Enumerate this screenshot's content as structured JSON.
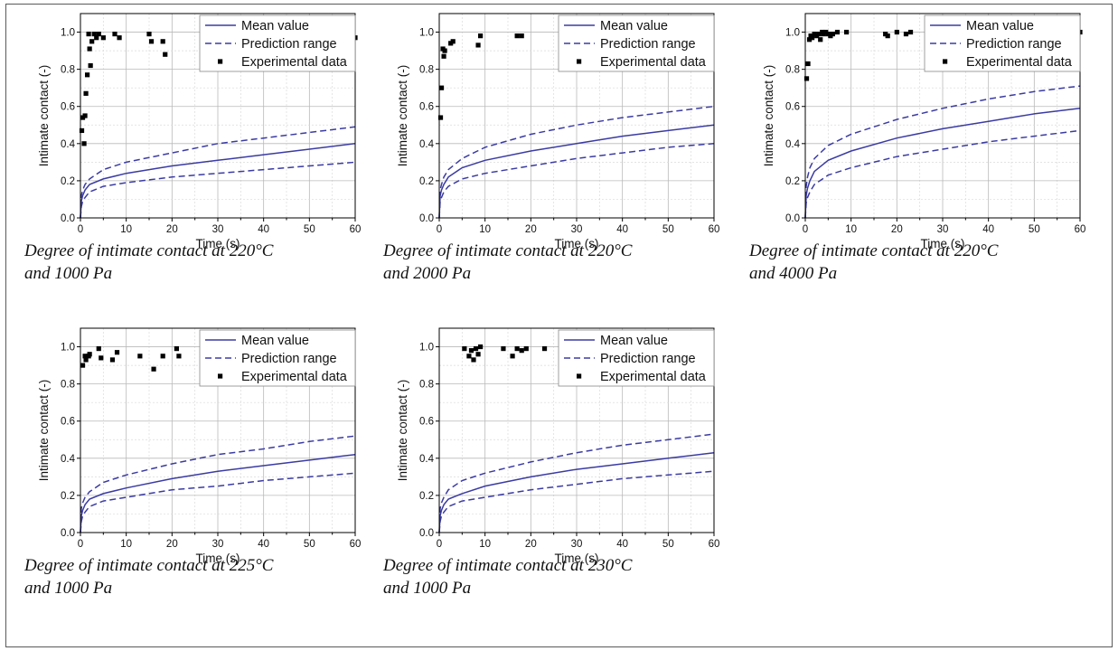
{
  "colors": {
    "model": "#3b3ba3",
    "experimental": "#000000",
    "grid": "#b9b9b9"
  },
  "legend": {
    "mean": "Mean value",
    "range": "Prediction range",
    "exp": "Experimental data"
  },
  "chart_data": [
    {
      "type": "line",
      "title": "",
      "xlabel": "Time (s)",
      "ylabel": "Intimate contact (-)",
      "xlim": [
        0,
        60
      ],
      "ylim": [
        0,
        1.1
      ],
      "xticks": [
        "0",
        "10",
        "20",
        "30",
        "40",
        "50",
        "60"
      ],
      "yticks": [
        "0.0",
        "0.2",
        "0.4",
        "0.6",
        "0.8",
        "1.0"
      ],
      "grid": true,
      "legend_position": "top-right",
      "caption": [
        "Degree of intimate contact at 220°C",
        "and 1000 Pa"
      ],
      "series": [
        {
          "name": "Mean value",
          "style": "solid",
          "x": [
            0.2,
            0.5,
            1,
            2,
            5,
            10,
            20,
            30,
            40,
            50,
            60
          ],
          "y": [
            0.09,
            0.12,
            0.15,
            0.18,
            0.21,
            0.24,
            0.28,
            0.31,
            0.34,
            0.37,
            0.4
          ]
        },
        {
          "name": "Prediction range",
          "style": "dashed",
          "x": [
            0.2,
            0.5,
            1,
            2,
            5,
            10,
            20,
            30,
            40,
            50,
            60
          ],
          "y": [
            0.12,
            0.15,
            0.18,
            0.21,
            0.26,
            0.3,
            0.35,
            0.4,
            0.43,
            0.46,
            0.49
          ]
        },
        {
          "name": "",
          "style": "dashed",
          "x": [
            0.2,
            0.5,
            1,
            2,
            5,
            10,
            20,
            30,
            40,
            50,
            60
          ],
          "y": [
            0.06,
            0.09,
            0.11,
            0.14,
            0.17,
            0.19,
            0.22,
            0.24,
            0.26,
            0.28,
            0.3
          ]
        },
        {
          "name": "Experimental data",
          "style": "points",
          "x": [
            0.3,
            0.5,
            0.8,
            1,
            1.2,
            1.5,
            1.8,
            2,
            2.2,
            2.5,
            3,
            3.5,
            4,
            5,
            7.5,
            8.5,
            15,
            15.5,
            18,
            18.5,
            60
          ],
          "y": [
            0.47,
            0.54,
            0.4,
            0.55,
            0.67,
            0.77,
            0.99,
            0.91,
            0.82,
            0.95,
            0.99,
            0.97,
            0.99,
            0.97,
            0.99,
            0.97,
            0.99,
            0.95,
            0.95,
            0.88,
            0.97
          ]
        }
      ]
    },
    {
      "type": "line",
      "title": "",
      "xlabel": "Time (s)",
      "ylabel": "Intimate contact (-)",
      "xlim": [
        0,
        60
      ],
      "ylim": [
        0,
        1.1
      ],
      "xticks": [
        "0",
        "10",
        "20",
        "30",
        "40",
        "50",
        "60"
      ],
      "yticks": [
        "0.0",
        "0.2",
        "0.4",
        "0.6",
        "0.8",
        "1.0"
      ],
      "grid": true,
      "legend_position": "top-right",
      "caption": [
        "Degree of intimate contact at 220°C",
        "and 2000 Pa"
      ],
      "series": [
        {
          "name": "Mean value",
          "style": "solid",
          "x": [
            0.2,
            0.5,
            1,
            2,
            5,
            10,
            20,
            30,
            40,
            50,
            60
          ],
          "y": [
            0.12,
            0.15,
            0.18,
            0.22,
            0.27,
            0.31,
            0.36,
            0.4,
            0.44,
            0.47,
            0.5
          ]
        },
        {
          "name": "Prediction range",
          "style": "dashed",
          "x": [
            0.2,
            0.5,
            1,
            2,
            5,
            10,
            20,
            30,
            40,
            50,
            60
          ],
          "y": [
            0.15,
            0.18,
            0.22,
            0.26,
            0.32,
            0.38,
            0.45,
            0.5,
            0.54,
            0.57,
            0.6
          ]
        },
        {
          "name": "",
          "style": "dashed",
          "x": [
            0.2,
            0.5,
            1,
            2,
            5,
            10,
            20,
            30,
            40,
            50,
            60
          ],
          "y": [
            0.09,
            0.11,
            0.14,
            0.17,
            0.21,
            0.24,
            0.28,
            0.32,
            0.35,
            0.38,
            0.4
          ]
        },
        {
          "name": "Experimental data",
          "style": "points",
          "x": [
            0.3,
            0.5,
            0.8,
            1,
            1.2,
            2.5,
            3,
            8.5,
            9,
            17,
            18
          ],
          "y": [
            0.54,
            0.7,
            0.91,
            0.87,
            0.9,
            0.94,
            0.95,
            0.93,
            0.98,
            0.98,
            0.98
          ]
        }
      ]
    },
    {
      "type": "line",
      "title": "",
      "xlabel": "Time (s)",
      "ylabel": "Intimate contact (-)",
      "xlim": [
        0,
        60
      ],
      "ylim": [
        0,
        1.1
      ],
      "xticks": [
        "0",
        "10",
        "20",
        "30",
        "40",
        "50",
        "60"
      ],
      "yticks": [
        "0.0",
        "0.2",
        "0.4",
        "0.6",
        "0.8",
        "1.0"
      ],
      "grid": true,
      "legend_position": "top-right",
      "caption": [
        "Degree of intimate contact at 220°C",
        "and 4000 Pa"
      ],
      "series": [
        {
          "name": "Mean value",
          "style": "solid",
          "x": [
            0.2,
            0.5,
            1,
            2,
            5,
            10,
            20,
            30,
            40,
            50,
            60
          ],
          "y": [
            0.12,
            0.16,
            0.2,
            0.25,
            0.31,
            0.36,
            0.43,
            0.48,
            0.52,
            0.56,
            0.59
          ]
        },
        {
          "name": "Prediction range",
          "style": "dashed",
          "x": [
            0.2,
            0.5,
            1,
            2,
            5,
            10,
            20,
            30,
            40,
            50,
            60
          ],
          "y": [
            0.17,
            0.22,
            0.27,
            0.32,
            0.39,
            0.45,
            0.53,
            0.59,
            0.64,
            0.68,
            0.71
          ]
        },
        {
          "name": "",
          "style": "dashed",
          "x": [
            0.2,
            0.5,
            1,
            2,
            5,
            10,
            20,
            30,
            40,
            50,
            60
          ],
          "y": [
            0.08,
            0.11,
            0.14,
            0.18,
            0.23,
            0.27,
            0.33,
            0.37,
            0.41,
            0.44,
            0.47
          ]
        },
        {
          "name": "Experimental data",
          "style": "points",
          "x": [
            0.3,
            0.6,
            0.9,
            1.2,
            1.5,
            2,
            2.5,
            3,
            3.3,
            3.7,
            4,
            4.5,
            5,
            5.5,
            6,
            7,
            9,
            17.5,
            18,
            20,
            22,
            23,
            60
          ],
          "y": [
            0.75,
            0.83,
            0.96,
            0.98,
            0.97,
            0.99,
            0.98,
            0.99,
            0.96,
            1.0,
            0.99,
            1.0,
            0.99,
            0.98,
            0.99,
            1.0,
            1.0,
            0.99,
            0.98,
            1.0,
            0.99,
            1.0,
            1.0
          ]
        }
      ]
    },
    {
      "type": "line",
      "title": "",
      "xlabel": "Time (s)",
      "ylabel": "Intimate contact (-)",
      "xlim": [
        0,
        60
      ],
      "ylim": [
        0,
        1.1
      ],
      "xticks": [
        "0",
        "10",
        "20",
        "30",
        "40",
        "50",
        "60"
      ],
      "yticks": [
        "0.0",
        "0.2",
        "0.4",
        "0.6",
        "0.8",
        "1.0"
      ],
      "grid": true,
      "legend_position": "top-right",
      "caption": [
        "Degree of intimate contact at 225°C",
        "and 1000 Pa"
      ],
      "series": [
        {
          "name": "Mean value",
          "style": "solid",
          "x": [
            0.2,
            0.5,
            1,
            2,
            5,
            10,
            20,
            30,
            40,
            50,
            60
          ],
          "y": [
            0.09,
            0.12,
            0.15,
            0.18,
            0.21,
            0.24,
            0.29,
            0.33,
            0.36,
            0.39,
            0.42
          ]
        },
        {
          "name": "Prediction range",
          "style": "dashed",
          "x": [
            0.2,
            0.5,
            1,
            2,
            5,
            10,
            20,
            30,
            40,
            50,
            60
          ],
          "y": [
            0.13,
            0.16,
            0.19,
            0.22,
            0.27,
            0.31,
            0.37,
            0.42,
            0.45,
            0.49,
            0.52
          ]
        },
        {
          "name": "",
          "style": "dashed",
          "x": [
            0.2,
            0.5,
            1,
            2,
            5,
            10,
            20,
            30,
            40,
            50,
            60
          ],
          "y": [
            0.06,
            0.09,
            0.11,
            0.14,
            0.17,
            0.19,
            0.23,
            0.25,
            0.28,
            0.3,
            0.32
          ]
        },
        {
          "name": "Experimental data",
          "style": "points",
          "x": [
            0.5,
            1,
            1.2,
            1.8,
            2,
            4,
            4.5,
            7,
            8,
            13,
            16,
            18,
            21,
            21.5
          ],
          "y": [
            0.9,
            0.95,
            0.93,
            0.95,
            0.96,
            0.99,
            0.94,
            0.93,
            0.97,
            0.95,
            0.88,
            0.95,
            0.99,
            0.95
          ]
        }
      ]
    },
    {
      "type": "line",
      "title": "",
      "xlabel": "Time (s)",
      "ylabel": "Intimate contact (-)",
      "xlim": [
        0,
        60
      ],
      "ylim": [
        0,
        1.1
      ],
      "xticks": [
        "0",
        "10",
        "20",
        "30",
        "40",
        "50",
        "60"
      ],
      "yticks": [
        "0.0",
        "0.2",
        "0.4",
        "0.6",
        "0.8",
        "1.0"
      ],
      "grid": true,
      "legend_position": "top-right",
      "caption": [
        "Degree of intimate contact at 230°C",
        "and 1000 Pa"
      ],
      "series": [
        {
          "name": "Mean value",
          "style": "solid",
          "x": [
            0.2,
            0.5,
            1,
            2,
            5,
            10,
            20,
            30,
            40,
            50,
            60
          ],
          "y": [
            0.09,
            0.12,
            0.15,
            0.18,
            0.21,
            0.25,
            0.3,
            0.34,
            0.37,
            0.4,
            0.43
          ]
        },
        {
          "name": "Prediction range",
          "style": "dashed",
          "x": [
            0.2,
            0.5,
            1,
            2,
            5,
            10,
            20,
            30,
            40,
            50,
            60
          ],
          "y": [
            0.13,
            0.16,
            0.19,
            0.23,
            0.28,
            0.32,
            0.38,
            0.43,
            0.47,
            0.5,
            0.53
          ]
        },
        {
          "name": "",
          "style": "dashed",
          "x": [
            0.2,
            0.5,
            1,
            2,
            5,
            10,
            20,
            30,
            40,
            50,
            60
          ],
          "y": [
            0.06,
            0.09,
            0.11,
            0.14,
            0.17,
            0.19,
            0.23,
            0.26,
            0.29,
            0.31,
            0.33
          ]
        },
        {
          "name": "Experimental data",
          "style": "points",
          "x": [
            5.5,
            6.5,
            7,
            7.5,
            8,
            8.5,
            9,
            14,
            16,
            17,
            18,
            19,
            23
          ],
          "y": [
            0.99,
            0.95,
            0.98,
            0.93,
            0.99,
            0.96,
            1.0,
            0.99,
            0.95,
            0.99,
            0.98,
            0.99,
            0.99
          ]
        }
      ]
    }
  ]
}
